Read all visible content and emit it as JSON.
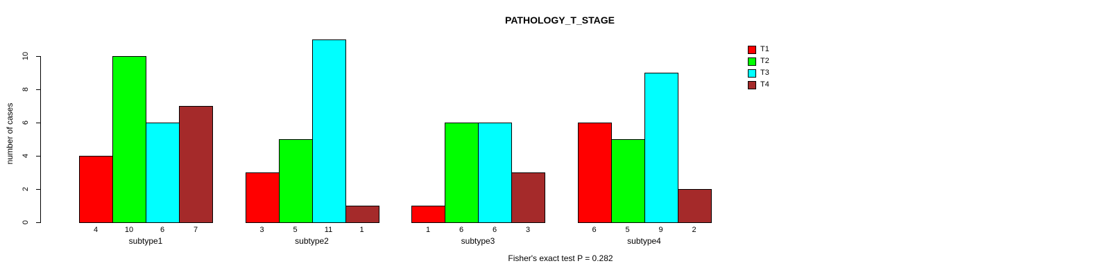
{
  "chart_data": {
    "type": "bar",
    "layout": "grouped",
    "title": "PATHOLOGY_T_STAGE",
    "ylabel": "number of cases",
    "xlabel": "",
    "annotation": "Fisher's exact test P = 0.282",
    "categories": [
      "subtype1",
      "subtype2",
      "subtype3",
      "subtype4"
    ],
    "series": [
      {
        "name": "T1",
        "color": "#FF0000",
        "values": [
          4,
          3,
          1,
          6
        ]
      },
      {
        "name": "T2",
        "color": "#00FF00",
        "values": [
          10,
          5,
          6,
          5
        ]
      },
      {
        "name": "T3",
        "color": "#00FFFF",
        "values": [
          6,
          11,
          6,
          9
        ]
      },
      {
        "name": "T4",
        "color": "#A52A2A",
        "values": [
          7,
          1,
          3,
          2
        ]
      }
    ],
    "yticks": [
      0,
      2,
      4,
      6,
      8,
      10
    ],
    "ylim": [
      0,
      11
    ],
    "bar_value_labels_shown": true,
    "grid": false,
    "legend_position": "top-right",
    "background_color": "#FFFFFF",
    "axis_color": "#000000"
  }
}
